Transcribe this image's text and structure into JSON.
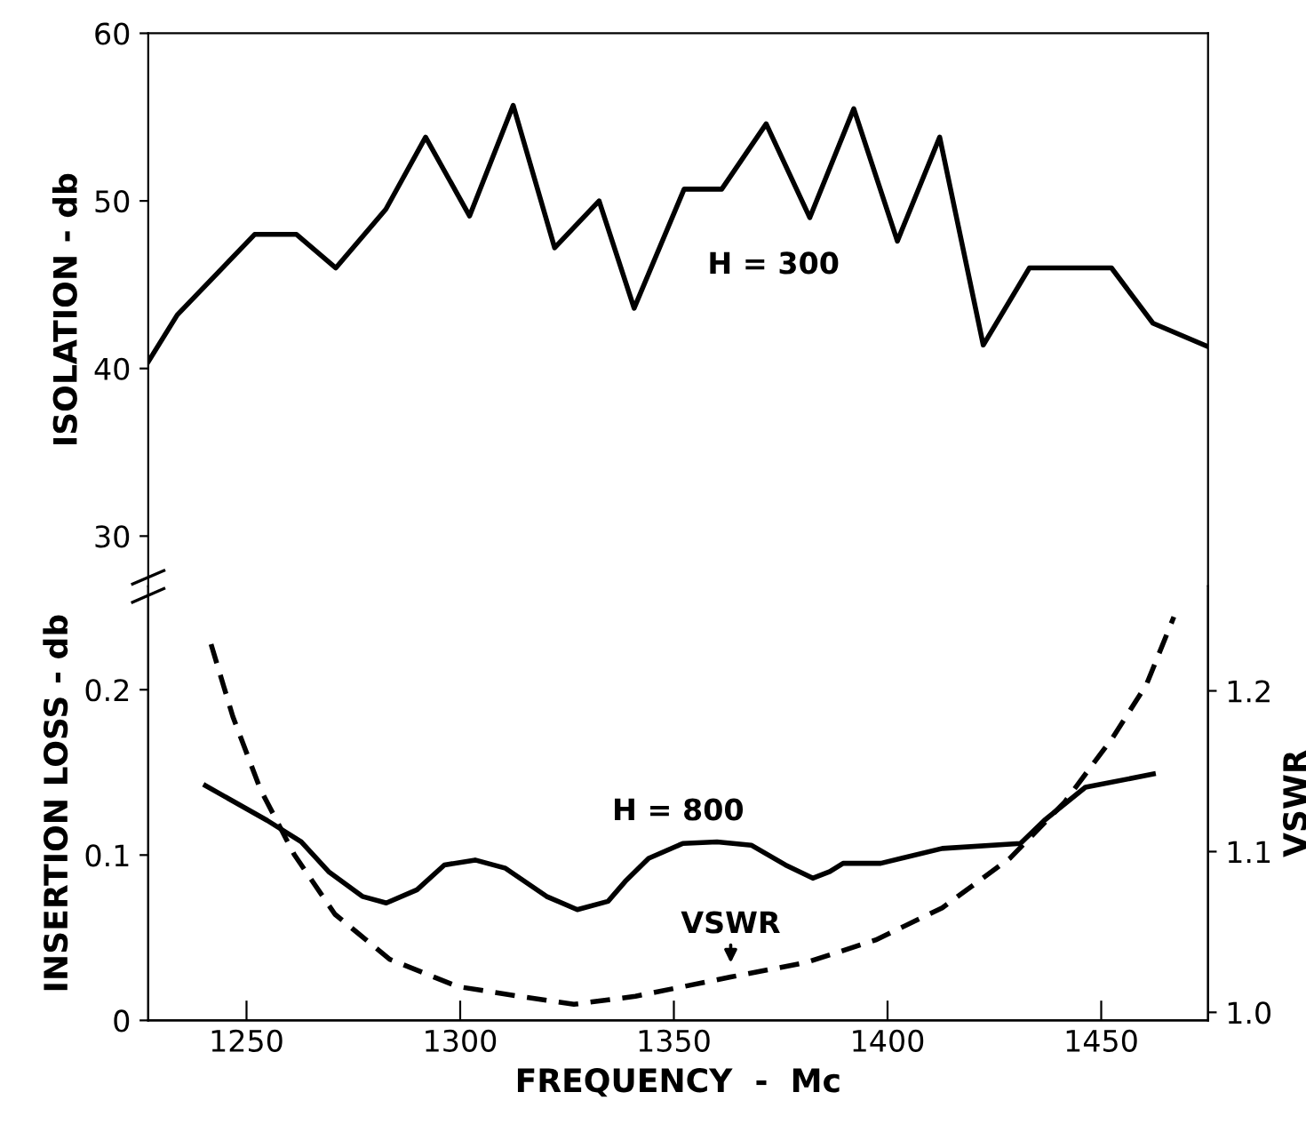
{
  "chart_data": [
    {
      "type": "line",
      "ylabel": "ISOLATION - db",
      "xlim": [
        1227,
        1475
      ],
      "ylim": [
        27,
        60
      ],
      "yticks": [
        30,
        40,
        50,
        60
      ],
      "tick_labels": "y",
      "grid": false,
      "legend": false,
      "marker": "none",
      "series": [
        {
          "name": "H = 300",
          "color": "#000000",
          "line_style": "solid",
          "x": [
            1227,
            1233.8,
            1251.9,
            1261.7,
            1270.9,
            1282.6,
            1291.9,
            1302.2,
            1312.4,
            1322.1,
            1332.5,
            1340.7,
            1352.4,
            1361.2,
            1371.6,
            1381.8,
            1392.1,
            1402.3,
            1412.2,
            1422.4,
            1433.2,
            1452.4,
            1462.1,
            1475
          ],
          "values": [
            40.4,
            43.2,
            48.0,
            48.0,
            46.0,
            49.5,
            53.8,
            49.1,
            55.7,
            47.2,
            50.0,
            43.6,
            50.7,
            50.7,
            54.6,
            49.0,
            55.5,
            47.6,
            53.8,
            41.4,
            46.0,
            46.0,
            42.7,
            41.3
          ]
        }
      ]
    },
    {
      "type": "line",
      "xlabel": "FREQUENCY  -  Mc",
      "ylabel": "INSERTION LOSS - db",
      "y2label": "VSWR",
      "xlim": [
        1227,
        1475
      ],
      "xticks": [
        1250,
        1300,
        1350,
        1400,
        1450
      ],
      "ylim": [
        0,
        0.2625
      ],
      "yticks": [
        0,
        0.1,
        0.2
      ],
      "y2lim": [
        0.995,
        1.265
      ],
      "y2ticks": [
        {
          "value": 1.0,
          "label": "1.0"
        },
        1.1,
        1.2
      ],
      "grid": false,
      "legend": false,
      "marker": "none",
      "series": [
        {
          "name": "H = 800",
          "color": "#000000",
          "line_style": "solid",
          "x": [
            1240.4,
            1254.8,
            1262.8,
            1269.2,
            1277.1,
            1282.7,
            1289.9,
            1296.3,
            1303.5,
            1310.6,
            1320.2,
            1327.4,
            1334.6,
            1338.6,
            1344.1,
            1352.1,
            1360.1,
            1368.1,
            1376.1,
            1382.5,
            1386.5,
            1389.6,
            1398.4,
            1412.8,
            1431.1,
            1436.7,
            1446.3,
            1462.2
          ],
          "values": [
            0.142,
            0.121,
            0.108,
            0.09,
            0.075,
            0.071,
            0.079,
            0.094,
            0.097,
            0.092,
            0.075,
            0.067,
            0.072,
            0.084,
            0.098,
            0.107,
            0.108,
            0.106,
            0.094,
            0.086,
            0.09,
            0.095,
            0.095,
            0.104,
            0.107,
            0.121,
            0.141,
            0.149
          ]
        },
        {
          "name": "VSWR",
          "axis": "y2",
          "color": "#000000",
          "line_style": "dashed",
          "x": [
            1241.7,
            1246.8,
            1253.2,
            1261.2,
            1270.7,
            1283.5,
            1299.5,
            1313.8,
            1326.6,
            1341,
            1363.3,
            1380.9,
            1397.2,
            1412.8,
            1428.7,
            1441.5,
            1452.7,
            1460.6,
            1467
          ],
          "values": [
            1.229,
            1.184,
            1.139,
            1.098,
            1.061,
            1.033,
            1.016,
            1.01,
            1.005,
            1.01,
            1.022,
            1.031,
            1.045,
            1.065,
            1.096,
            1.131,
            1.171,
            1.204,
            1.246
          ]
        }
      ]
    }
  ]
}
